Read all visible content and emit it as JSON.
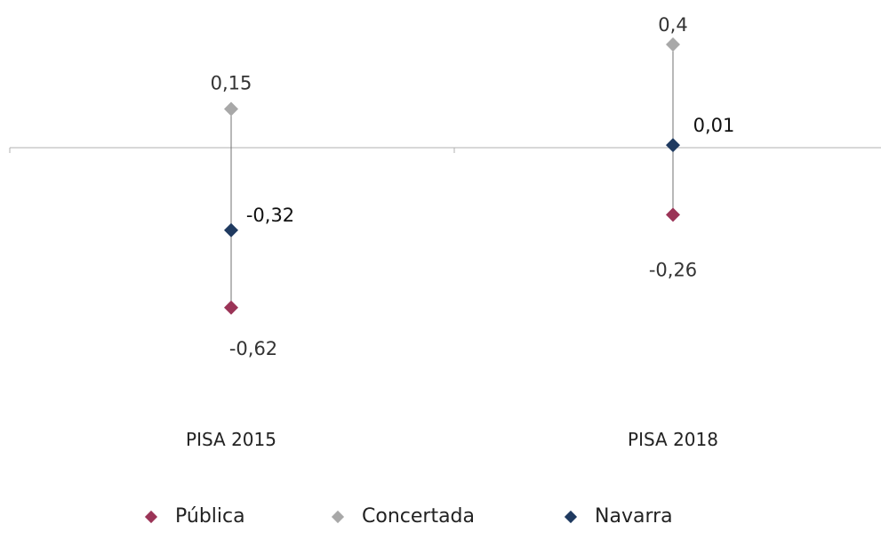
{
  "chart_data": {
    "type": "scatter",
    "categories": [
      "PISA 2015",
      "PISA 2018"
    ],
    "series": [
      {
        "name": "Pública",
        "color": "#9b3457",
        "values": [
          -0.62,
          -0.26
        ],
        "labels": [
          "-0,62",
          "-0,26"
        ]
      },
      {
        "name": "Concertada",
        "color": "#a8a8a8",
        "values": [
          0.15,
          0.4
        ],
        "labels": [
          "0,15",
          "0,4"
        ]
      },
      {
        "name": "Navarra",
        "color": "#1f3a60",
        "values": [
          -0.32,
          0.01
        ],
        "labels": [
          "-0,32",
          "0,01"
        ]
      }
    ],
    "ylim": [
      -1.0,
      0.55
    ],
    "grid": false,
    "legend_position": "bottom"
  }
}
